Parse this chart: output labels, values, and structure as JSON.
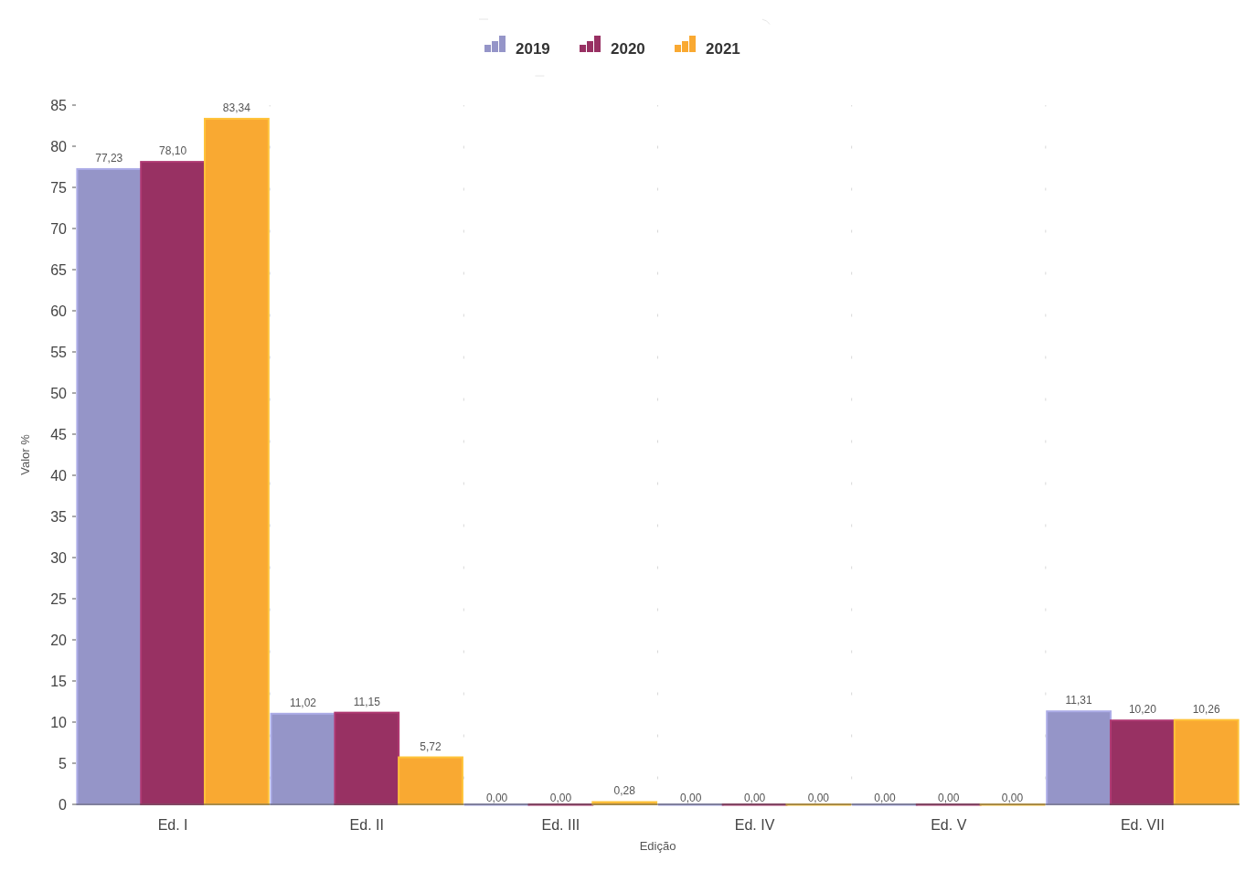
{
  "chart_data": {
    "type": "bar",
    "xlabel": "Edição",
    "ylabel": "Valor %",
    "categories": [
      "Ed. I",
      "Ed. II",
      "Ed. III",
      "Ed. IV",
      "Ed. V",
      "Ed. VII"
    ],
    "series": [
      {
        "name": "2019",
        "color": "#9595c8",
        "values": [
          77.23,
          11.02,
          0,
          0,
          0,
          11.31
        ],
        "value_labels": [
          "77,23",
          "11,02",
          "0,00",
          "0,00",
          "0,00",
          "11,31"
        ]
      },
      {
        "name": "2020",
        "color": "#983163",
        "values": [
          78.1,
          11.15,
          0,
          0,
          0,
          10.2
        ],
        "value_labels": [
          "78,10",
          "11,15",
          "0,00",
          "0,00",
          "0,00",
          "10,20"
        ]
      },
      {
        "name": "2021",
        "color": "#f9a932",
        "values": [
          83.34,
          5.72,
          0.28,
          0,
          0,
          10.26
        ],
        "value_labels": [
          "83,34",
          "5,72",
          "0,28",
          "0,00",
          "0,00",
          "10,26"
        ]
      }
    ],
    "ylim": [
      0,
      85
    ],
    "yticks": [
      0,
      5,
      10,
      15,
      20,
      25,
      30,
      35,
      40,
      45,
      50,
      55,
      60,
      65,
      70,
      75,
      80,
      85
    ],
    "grid": "x",
    "legend": "top"
  }
}
